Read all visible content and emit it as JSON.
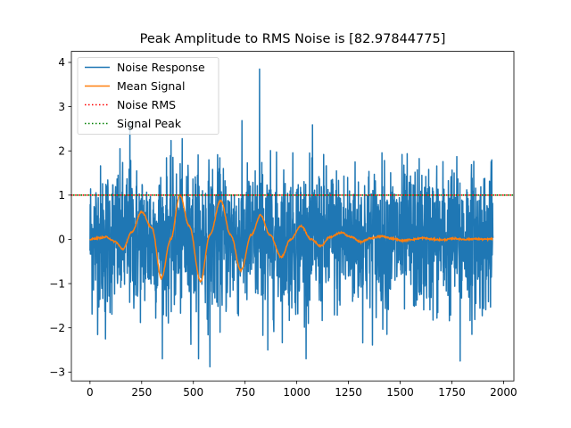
{
  "chart_data": {
    "type": "line",
    "title": "Peak Amplitude to RMS Noise is [82.97844775]",
    "xlabel": "",
    "ylabel": "",
    "xlim": [
      -90,
      2050
    ],
    "ylim": [
      -3.2,
      4.25
    ],
    "x_ticks": [
      0,
      250,
      500,
      750,
      1000,
      1250,
      1500,
      1750,
      2000
    ],
    "y_ticks": [
      -3,
      -2,
      -1,
      0,
      1,
      2,
      3,
      4
    ],
    "grid": false,
    "legend_position": "upper-left",
    "n_samples": 1950,
    "series": [
      {
        "name": "Noise Response",
        "color": "#1f77b4",
        "style": "solid",
        "noise_extremes": [
          [
            820,
            3.85
          ],
          [
            580,
            -2.88
          ],
          [
            193,
            2.62
          ],
          [
            1790,
            -2.75
          ],
          [
            1950,
            -2.65
          ],
          [
            860,
            -2.5
          ],
          [
            75,
            -2.25
          ]
        ]
      },
      {
        "name": "Mean Signal",
        "color": "#ff7f0e",
        "style": "solid",
        "points": [
          [
            0,
            0.0
          ],
          [
            40,
            0.03
          ],
          [
            80,
            0.05
          ],
          [
            120,
            -0.05
          ],
          [
            160,
            -0.22
          ],
          [
            200,
            0.15
          ],
          [
            250,
            0.62
          ],
          [
            300,
            0.25
          ],
          [
            345,
            -0.88
          ],
          [
            390,
            0.0
          ],
          [
            435,
            1.0
          ],
          [
            480,
            0.3
          ],
          [
            535,
            -0.95
          ],
          [
            580,
            0.1
          ],
          [
            632,
            0.88
          ],
          [
            680,
            0.1
          ],
          [
            730,
            -0.7
          ],
          [
            780,
            0.1
          ],
          [
            825,
            0.55
          ],
          [
            870,
            0.1
          ],
          [
            925,
            -0.4
          ],
          [
            970,
            0.0
          ],
          [
            1020,
            0.3
          ],
          [
            1070,
            0.0
          ],
          [
            1115,
            -0.15
          ],
          [
            1160,
            0.05
          ],
          [
            1215,
            0.15
          ],
          [
            1265,
            0.05
          ],
          [
            1310,
            -0.06
          ],
          [
            1360,
            0.03
          ],
          [
            1410,
            0.07
          ],
          [
            1460,
            0.02
          ],
          [
            1510,
            -0.03
          ],
          [
            1560,
            0.0
          ],
          [
            1610,
            0.03
          ],
          [
            1660,
            0.0
          ],
          [
            1710,
            -0.01
          ],
          [
            1760,
            0.02
          ],
          [
            1810,
            0.0
          ],
          [
            1860,
            0.01
          ],
          [
            1910,
            0.0
          ],
          [
            1950,
            0.01
          ]
        ]
      },
      {
        "name": "Noise RMS",
        "color": "#ff0000",
        "style": "dotted",
        "value": 1.0
      },
      {
        "name": "Signal Peak",
        "color": "#008000",
        "style": "dotted",
        "value": 1.0
      }
    ]
  }
}
